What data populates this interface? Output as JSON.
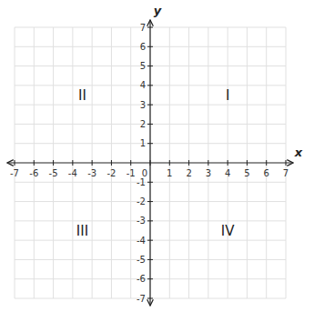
{
  "chart_data": {
    "type": "coordinate_plane",
    "xlabel": "x",
    "ylabel": "y",
    "xlim": [
      -7,
      7
    ],
    "ylim": [
      -7,
      7
    ],
    "xticks": [
      -7,
      -6,
      -5,
      -4,
      -3,
      -2,
      -1,
      0,
      1,
      2,
      3,
      4,
      5,
      6,
      7
    ],
    "yticks": [
      -7,
      -6,
      -5,
      -4,
      -3,
      -2,
      -1,
      1,
      2,
      3,
      4,
      5,
      6,
      7
    ],
    "grid": true,
    "annotations": [
      {
        "text": "I",
        "x": 4.0,
        "y": 3.5
      },
      {
        "text": "II",
        "x": -3.5,
        "y": 3.5
      },
      {
        "text": "III",
        "x": -3.5,
        "y": -3.5
      },
      {
        "text": "IV",
        "x": 4.0,
        "y": -3.5
      }
    ]
  }
}
